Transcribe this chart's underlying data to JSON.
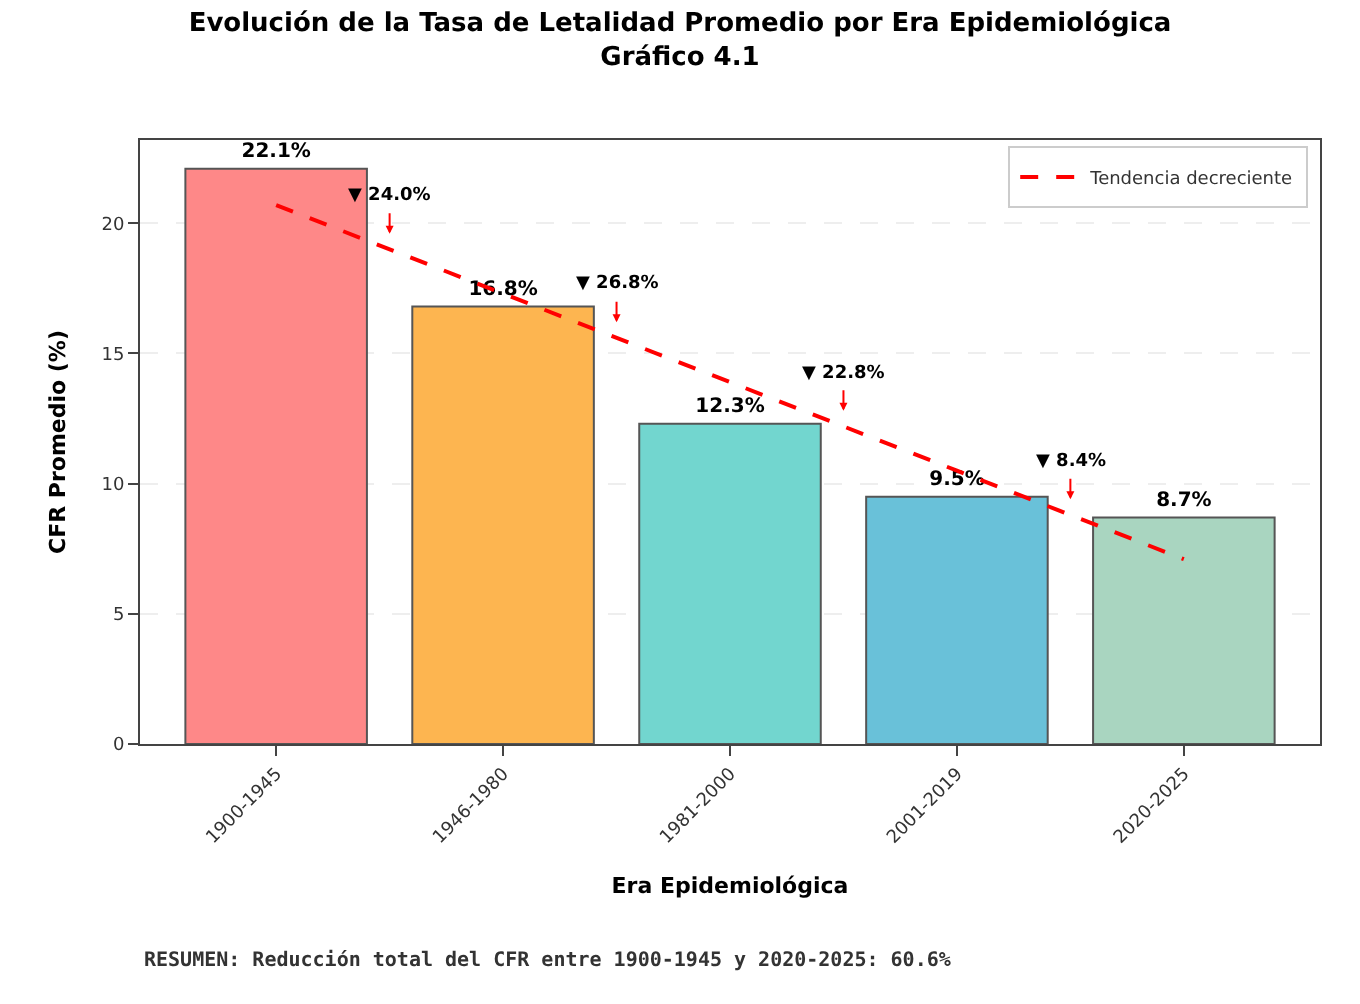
{
  "chart_data": {
    "type": "bar",
    "title": "Evolución de la Tasa de Letalidad Promedio por Era Epidemiológica",
    "subtitle": "Gráfico 4.1",
    "xlabel": "Era Epidemiológica",
    "ylabel": "CFR Promedio (%)",
    "categories": [
      "1900-1945",
      "1946-1980",
      "1981-2000",
      "2001-2019",
      "2020-2025"
    ],
    "values": [
      22.1,
      16.8,
      12.3,
      9.5,
      8.7
    ],
    "colors": [
      "#fe8888",
      "#fdb550",
      "#72d6cf",
      "#69c1d9",
      "#a9d5c0"
    ],
    "value_labels": [
      "22.1%",
      "16.8%",
      "12.3%",
      "9.5%",
      "8.7%"
    ],
    "series": [
      {
        "name": "Tendencia decreciente",
        "type": "line",
        "color": "#ff0000",
        "line_style": "dashed",
        "values": [
          20.7,
          17.3,
          13.9,
          10.5,
          7.1
        ]
      }
    ],
    "annotations": [
      "▼ 24.0%",
      "▼ 26.8%",
      "▼ 22.8%",
      "▼ 8.4%",
      "RESUMEN: Reducción total del CFR entre 1900-1945 y 2020-2025: 60.6%"
    ],
    "ylim": [
      0,
      23.2
    ],
    "yticks": [
      0,
      5,
      10,
      15,
      20
    ],
    "grid": "y",
    "legend": "top right"
  }
}
